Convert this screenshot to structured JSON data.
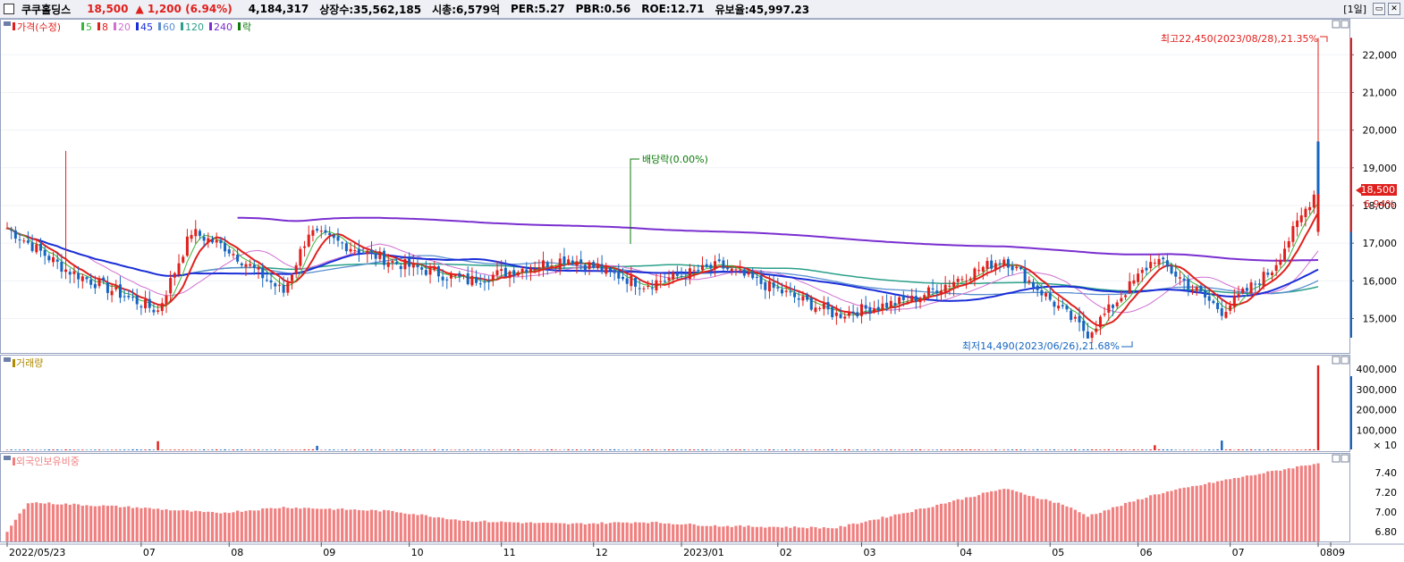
{
  "header": {
    "name": "쿠쿠홀딩스",
    "price": "18,500",
    "change": "▲ 1,200",
    "change_pct": "(6.94%)",
    "volume": "4,184,317",
    "listed": "상장수:35,562,185",
    "mktcap": "시총:6,579억",
    "per": "PER:5.27",
    "pbr": "PBR:0.56",
    "roe": "ROE:12.71",
    "float": "유보율:45,997.23",
    "period": "[1일]"
  },
  "colors": {
    "up": "#e0201c",
    "down": "#1565c0",
    "ma5": "#3ab53a",
    "ma8": "#e0201c",
    "ma20": "#d070d0",
    "ma45": "#1a2ed8",
    "ma60": "#5b8fd0",
    "ma120": "#2aa08a",
    "ma240": "#7a2fd0",
    "div": "#0a7a0a",
    "foreign": "#f08080"
  },
  "legend": {
    "price": [
      {
        "label": "가격(수정)",
        "color": "#e0201c"
      },
      {
        "label": "5",
        "color": "#3ab53a"
      },
      {
        "label": "8",
        "color": "#e0201c"
      },
      {
        "label": "20",
        "color": "#d070d0"
      },
      {
        "label": "45",
        "color": "#1a2ed8"
      },
      {
        "label": "60",
        "color": "#5b8fd0"
      },
      {
        "label": "120",
        "color": "#2aa08a"
      },
      {
        "label": "240",
        "color": "#7a2fd0"
      },
      {
        "label": "락",
        "color": "#0a7a0a"
      }
    ],
    "volume": "거래량",
    "foreign": "외국인보유비중"
  },
  "annotations": {
    "high": "최고22,450(2023/08/28),21.35%",
    "low": "최저14,490(2023/06/26),21.68%",
    "dividend": "배당락(0.00%)",
    "current_price": "18,500",
    "current_pct": "6.94%"
  },
  "x_labels": [
    "2022/05/23",
    "07",
    "08",
    "09",
    "10",
    "11",
    "12",
    "2023/01",
    "02",
    "03",
    "04",
    "05",
    "06",
    "07",
    "08",
    "09"
  ],
  "chart_data": [
    {
      "type": "candlestick",
      "title": "",
      "ylim": [
        14300,
        22600
      ],
      "y_ticks": [
        "15,000",
        "16,000",
        "17,000",
        "18,000",
        "19,000",
        "20,000",
        "21,000",
        "22,000"
      ],
      "price_keypoints": [
        {
          "month": "2022/05",
          "close": 17400
        },
        {
          "month": "06",
          "close": 16300
        },
        {
          "month": "07",
          "close": 15200
        },
        {
          "month": "07",
          "close": 17300
        },
        {
          "month": "08",
          "close": 16900
        },
        {
          "month": "09",
          "close": 15700
        },
        {
          "month": "09",
          "close": 17300
        },
        {
          "month": "10",
          "close": 16500
        },
        {
          "month": "11",
          "close": 16000
        },
        {
          "month": "12",
          "close": 16600
        },
        {
          "month": "2023/01",
          "close": 15900
        },
        {
          "month": "02",
          "close": 16400
        },
        {
          "month": "03",
          "close": 15100
        },
        {
          "month": "04",
          "close": 15500
        },
        {
          "month": "05",
          "close": 16600
        },
        {
          "month": "06",
          "close": 14600
        },
        {
          "month": "07",
          "close": 16600
        },
        {
          "month": "08",
          "close": 15200
        },
        {
          "month": "08",
          "close": 16300
        },
        {
          "month": "08/28",
          "close": 18500
        }
      ],
      "high": 22450,
      "low": 14490
    },
    {
      "type": "bar",
      "title": "",
      "series_name": "거래량",
      "y_ticks": [
        "× 10",
        "100,000",
        "200,000",
        "300,000",
        "400,000"
      ],
      "ylim": [
        0,
        440000
      ],
      "baseline": 3000,
      "spikes": [
        {
          "month": "07",
          "value": 45000
        },
        {
          "month": "09",
          "value": 22000
        },
        {
          "month": "05",
          "value": 25000
        },
        {
          "month": "06",
          "value": 48000
        },
        {
          "month": "08/28",
          "value": 418432
        }
      ]
    },
    {
      "type": "bar",
      "title": "",
      "series_name": "외국인보유비중",
      "y_ticks": [
        "6.80",
        "7.00",
        "7.20",
        "7.40"
      ],
      "ylim": [
        6.72,
        7.52
      ],
      "keypoints": [
        {
          "month": "2022/05",
          "value": 6.8
        },
        {
          "month": "06",
          "value": 7.1
        },
        {
          "month": "07",
          "value": 7.05
        },
        {
          "month": "08",
          "value": 6.99
        },
        {
          "month": "09",
          "value": 7.05
        },
        {
          "month": "10",
          "value": 7.01
        },
        {
          "month": "11",
          "value": 6.91
        },
        {
          "month": "12",
          "value": 6.88
        },
        {
          "month": "2023/01",
          "value": 6.9
        },
        {
          "month": "02",
          "value": 6.86
        },
        {
          "month": "03",
          "value": 6.84
        },
        {
          "month": "04",
          "value": 7.01
        },
        {
          "month": "05",
          "value": 7.24
        },
        {
          "month": "06",
          "value": 7.08
        },
        {
          "month": "06",
          "value": 6.96
        },
        {
          "month": "07",
          "value": 7.18
        },
        {
          "month": "08",
          "value": 7.32
        },
        {
          "month": "08/28",
          "value": 7.5
        }
      ]
    }
  ]
}
